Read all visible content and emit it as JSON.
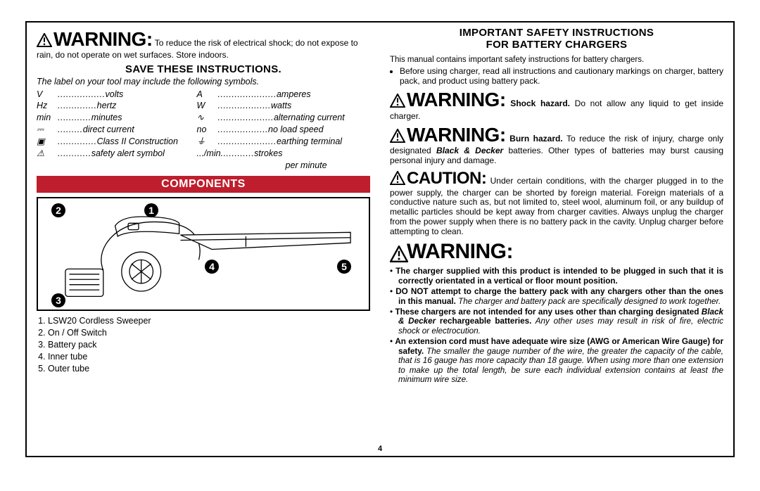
{
  "page_number": "4",
  "left": {
    "warning_1_title": "WARNING:",
    "warning_1_body": " To reduce the risk of electrical shock; do not expose to rain, do not operate on wet surfaces. Store indoors.",
    "save_heading": "Save these instructions.",
    "label_note": "The label on your tool may include the following symbols.",
    "symbols_col1": [
      {
        "k": "V",
        "d": ".................",
        "v": "volts"
      },
      {
        "k": "Hz",
        "d": "..............",
        "v": "hertz"
      },
      {
        "k": "min",
        "d": "............",
        "v": "minutes"
      },
      {
        "k": "⎓",
        "d": ".........",
        "v": "direct current"
      },
      {
        "k": "▣",
        "d": "..............",
        "v": "Class II Construction"
      },
      {
        "k": "⚠",
        "d": "............",
        "v": "safety alert symbol"
      }
    ],
    "symbols_col2": [
      {
        "k": "A",
        "d": ".....................",
        "v": "amperes"
      },
      {
        "k": "W",
        "d": "...................",
        "v": "watts"
      },
      {
        "k": "∿",
        "d": "....................",
        "v": "alternating current"
      },
      {
        "k": "no",
        "d": "..................",
        "v": "no load speed"
      },
      {
        "k": "⏚",
        "d": ".....................",
        "v": "earthing terminal"
      },
      {
        "k": ".../min",
        "d": "............",
        "v": "strokes per minute"
      }
    ],
    "components_heading": "Components",
    "components_list": [
      "LSW20 Cordless Sweeper",
      "On / Off Switch",
      "Battery pack",
      "Inner tube",
      "Outer tube"
    ],
    "callouts": [
      "1",
      "2",
      "3",
      "4",
      "5"
    ],
    "colors": {
      "red": "#be1e2d",
      "black": "#000000"
    }
  },
  "right": {
    "heading_line1": "Important Safety Instructions",
    "heading_line2": "for Battery Chargers",
    "intro": "This manual contains important safety instructions for battery chargers.",
    "bullet1": "Before using charger, read all instructions and cautionary markings on charger, battery pack, and product using battery pack.",
    "warn_shock_title": "WARNING:",
    "warn_shock_bold": " Shock hazard.",
    "warn_shock_body": " Do not allow any liquid to get inside charger.",
    "warn_burn_title": "WARNING:",
    "warn_burn_bold": " Burn hazard.",
    "warn_burn_body_a": " To reduce the risk of injury, charge only designated ",
    "warn_burn_body_brand": "Black & Decker",
    "warn_burn_body_b": " batteries. Other types of batteries may burst causing personal injury and damage.",
    "caution_title": "CAUTION:",
    "caution_body": " Under certain conditions, with the charger plugged in to the power supply, the charger can be shorted by foreign material. Foreign materials of a conductive nature such as, but not limited to, steel wool, aluminum foil, or any buildup of metallic particles should be kept away from charger cavities. Always unplug the charger from the power supply when there is no battery pack in the cavity. Unplug charger before attempting to clean.",
    "warn_standalone": "WARNING:",
    "bullets2": [
      {
        "bold": "The charger supplied with this product is intended to be plugged in such that it is correctly orientated in a vertical or floor mount position.",
        "rest": ""
      },
      {
        "bold": "DO NOT attempt to charge the battery pack with any chargers other than the ones in this manual.",
        "rest_it": " The charger and battery pack are specifically designed to work together."
      },
      {
        "bold_a": "These chargers are not intended for any uses other than charging designated ",
        "brand": "Black & Decker",
        "bold_b": " rechargeable batteries.",
        "rest_it": " Any other uses may result in risk of fire, electric shock or electrocution."
      },
      {
        "bold": "An extension cord must have adequate wire size (AWG or American Wire Gauge) for safety.",
        "rest_it": " The smaller the gauge number of the wire, the greater the capacity of the cable, that is 16 gauge has more capacity than 18 gauge. When using more than one extension to make up the total length, be sure each individual extension contains at least the minimum wire size."
      }
    ]
  }
}
